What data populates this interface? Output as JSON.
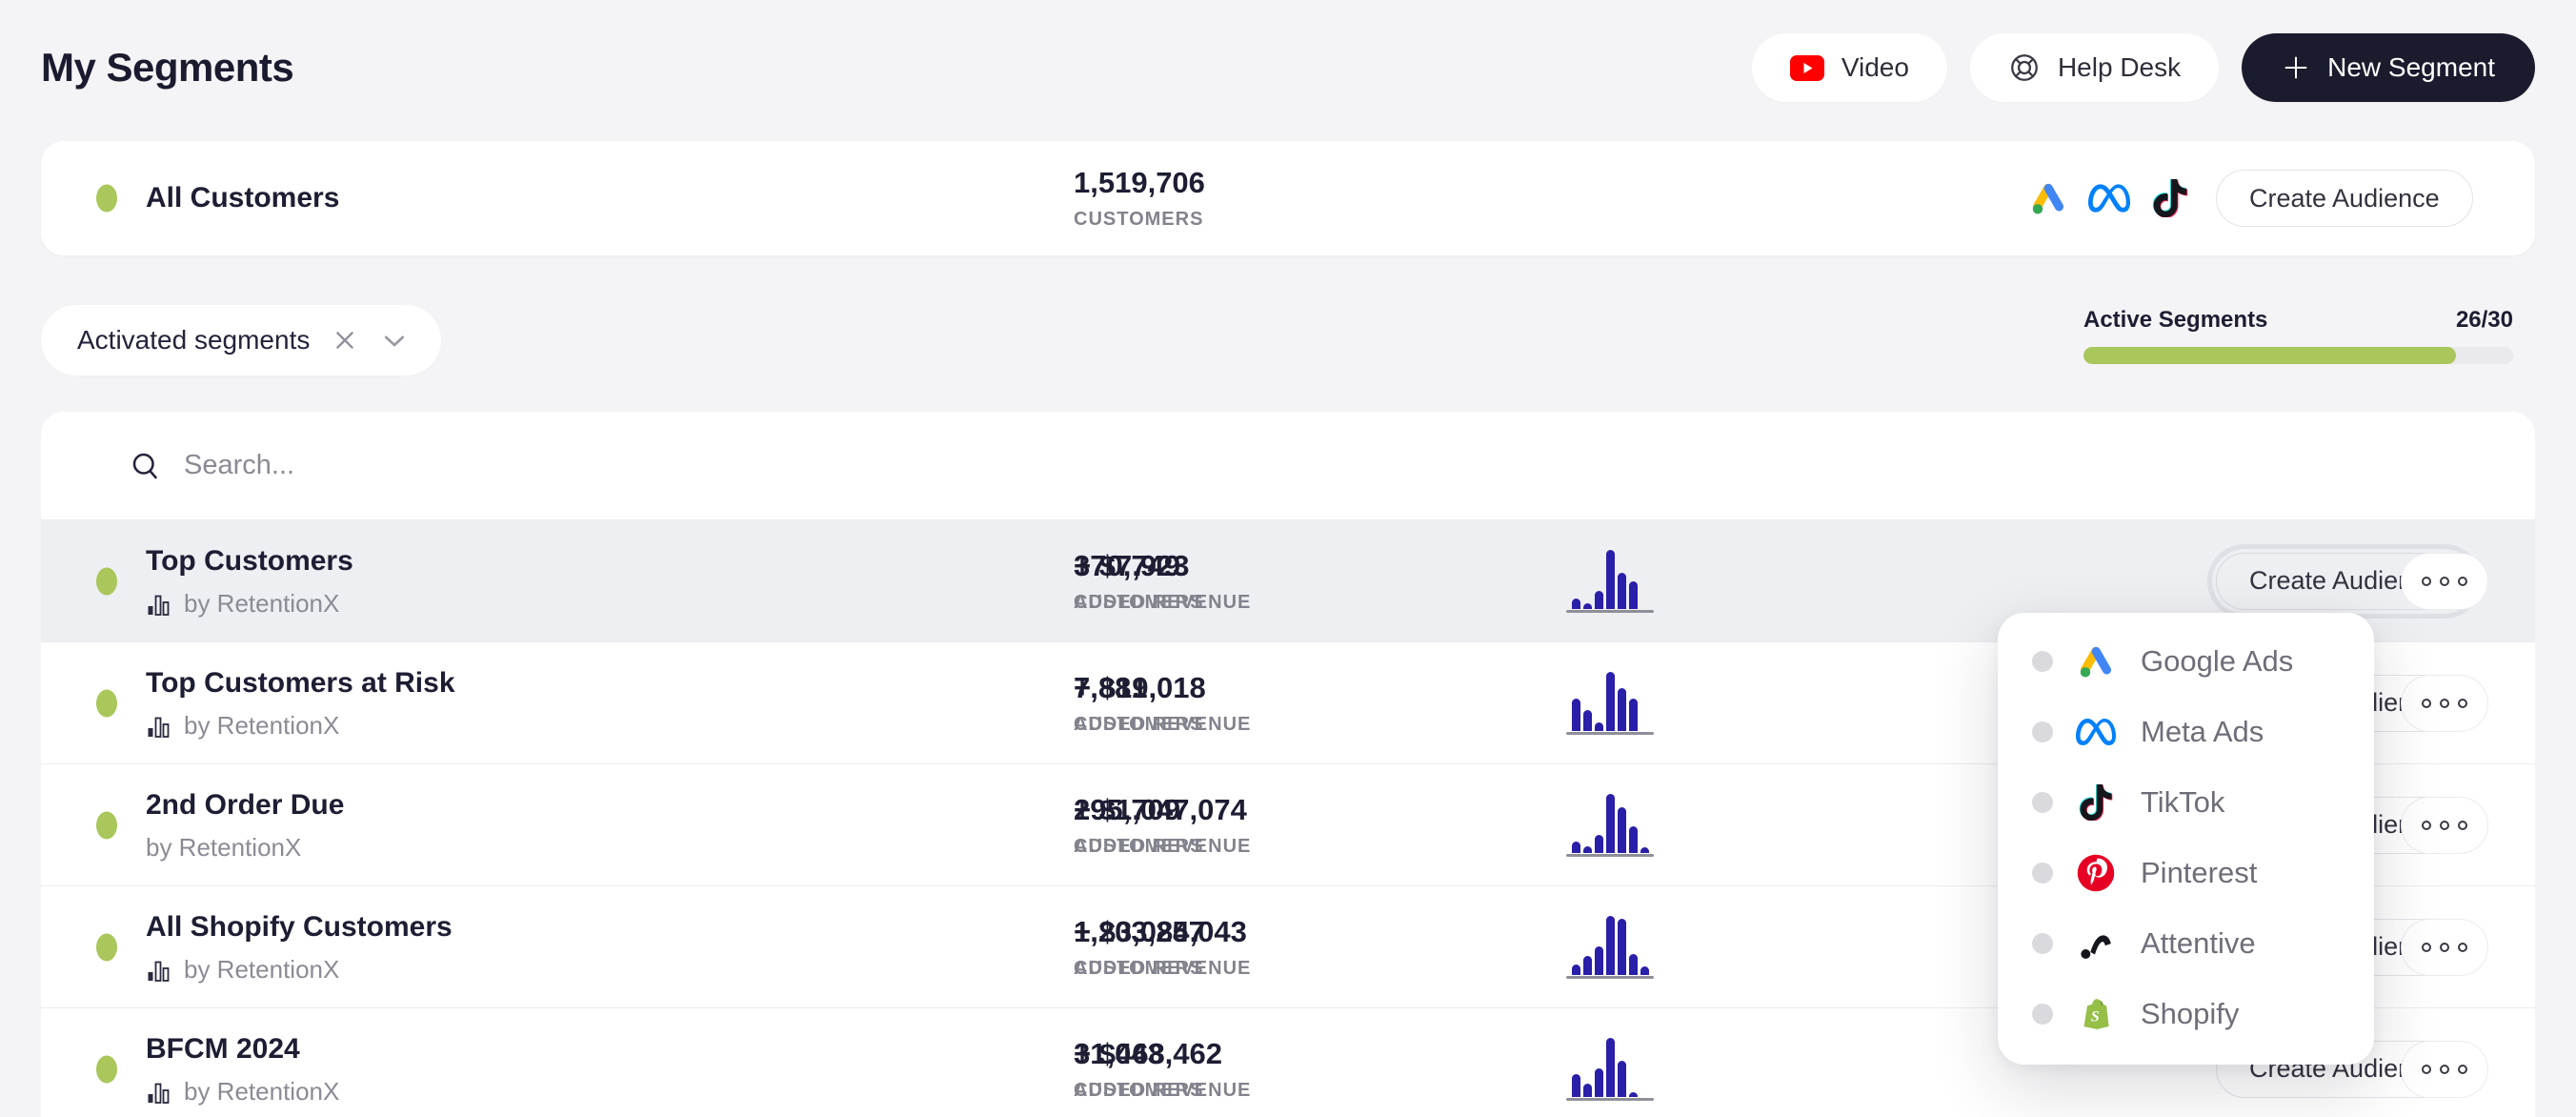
{
  "header": {
    "title": "My Segments",
    "video_label": "Video",
    "help_desk_label": "Help Desk",
    "new_segment_label": "New Segment"
  },
  "all_customers": {
    "name": "All Customers",
    "count": "1,519,706",
    "count_label": "CUSTOMERS",
    "create_audience_label": "Create Audience",
    "platform_icons": [
      "google-ads-icon",
      "meta-ads-icon",
      "tiktok-icon"
    ]
  },
  "filter_chip": {
    "label": "Activated segments"
  },
  "segments_quota": {
    "label": "Active Segments",
    "count": "26/30",
    "percent": 86.7
  },
  "search": {
    "placeholder": "Search..."
  },
  "table": {
    "rows": [
      {
        "name": "Top Customers",
        "byline": "by RetentionX",
        "customers": "370,749",
        "customers_label": "CUSTOMERS",
        "revenue": "+ $7,923",
        "revenue_label": "ADDED REVENUE",
        "create_audience_label": "Create Audience",
        "spark": [
          0.18,
          0.1,
          0.3,
          1.0,
          0.62,
          0.46
        ]
      },
      {
        "name": "Top Customers at Risk",
        "byline": "by RetentionX",
        "customers": "7,881",
        "customers_label": "CUSTOMERS",
        "revenue": "+ $19,018",
        "revenue_label": "ADDED REVENUE",
        "create_audience_label": "Create Audience",
        "spark": [
          0.55,
          0.35,
          0.14,
          1.0,
          0.72,
          0.55
        ]
      },
      {
        "name": "2nd Order Due",
        "byline": "by RetentionX",
        "customers": "295,709",
        "customers_label": "CUSTOMERS",
        "revenue": "+ $1,047,074",
        "revenue_label": "ADDED REVENUE",
        "create_audience_label": "Create Audience",
        "spark": [
          0.2,
          0.12,
          0.3,
          1.0,
          0.78,
          0.45,
          0.1
        ]
      },
      {
        "name": "All Shopify Customers",
        "byline": "by RetentionX",
        "customers": "1,203,257",
        "customers_label": "CUSTOMERS",
        "revenue": "+ $3,084,043",
        "revenue_label": "ADDED REVENUE",
        "create_audience_label": "Create Audience",
        "spark": [
          0.18,
          0.32,
          0.48,
          1.0,
          0.95,
          0.35,
          0.15
        ]
      },
      {
        "name": "BFCM 2024",
        "byline": "by RetentionX",
        "customers": "31,043",
        "customers_label": "CUSTOMERS",
        "revenue": "+ $468,462",
        "revenue_label": "ADDED REVENUE",
        "create_audience_label": "Create Audience",
        "spark": [
          0.38,
          0.22,
          0.48,
          1.0,
          0.62,
          0.08
        ]
      }
    ]
  },
  "audience_menu": {
    "items": [
      {
        "label": "Google Ads"
      },
      {
        "label": "Meta Ads"
      },
      {
        "label": "TikTok"
      },
      {
        "label": "Pinterest"
      },
      {
        "label": "Attentive"
      },
      {
        "label": "Shopify"
      }
    ]
  },
  "colors": {
    "accent_green": "#A9C75B",
    "spark_bar": "#2A1FA8",
    "dark_button": "#1B1B2E",
    "page_bg": "#F4F4F6"
  }
}
